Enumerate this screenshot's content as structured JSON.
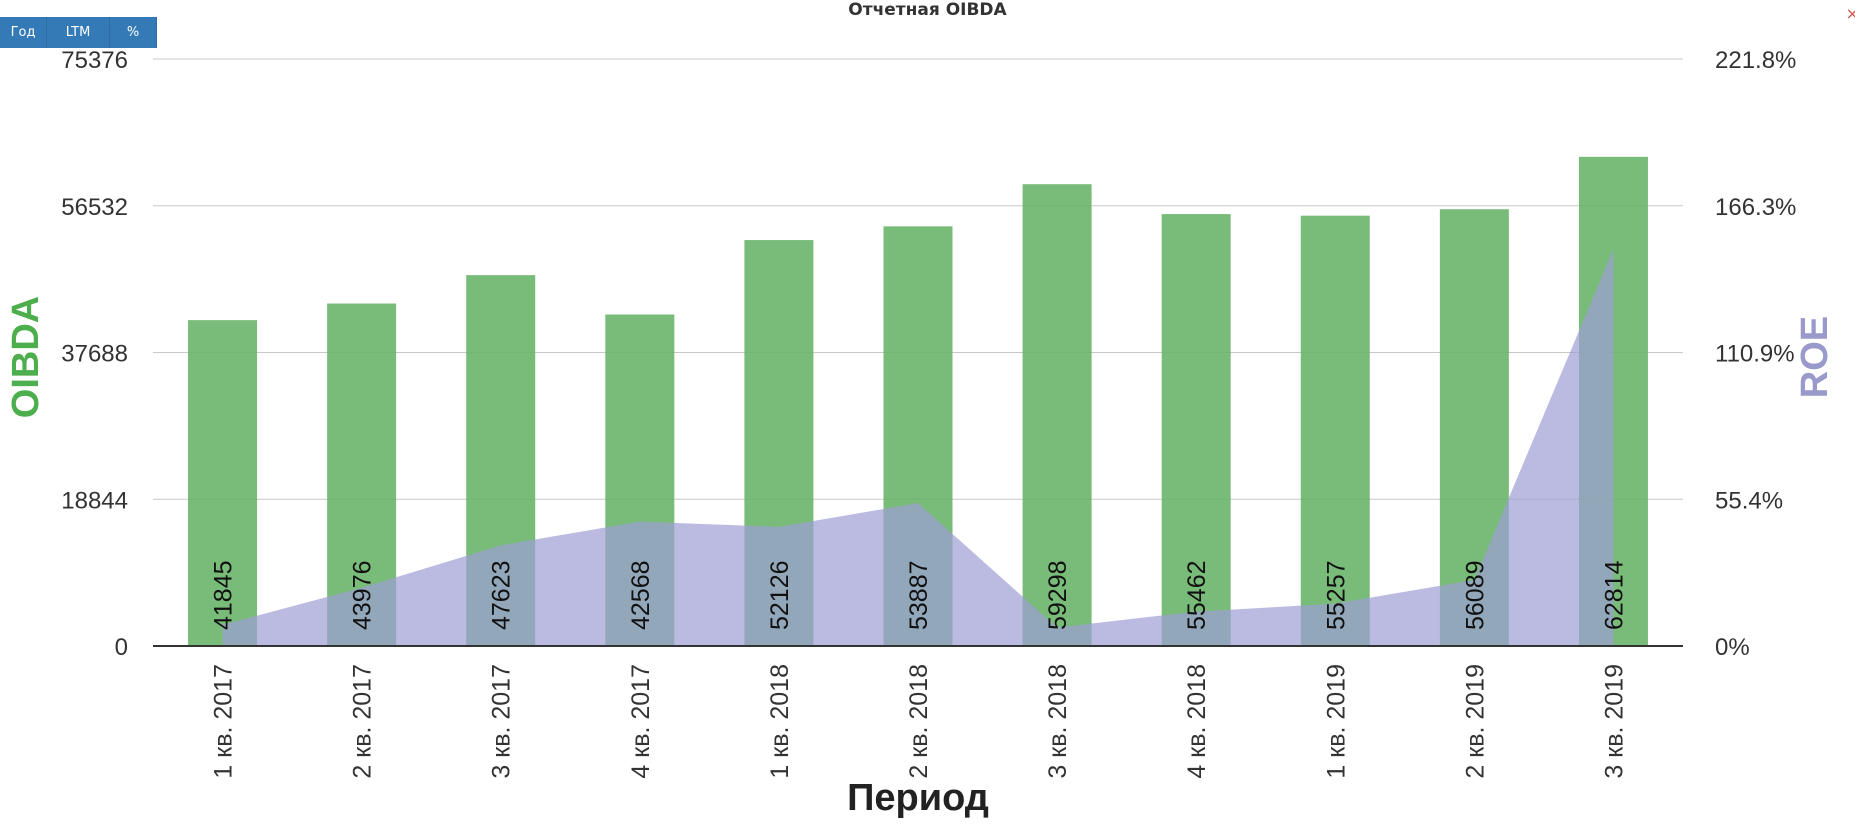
{
  "title": "Отчетная OIBDA",
  "buttons": {
    "year": "Год",
    "ltm": "LTM",
    "percent": "%"
  },
  "close_icon": "close-icon",
  "colors": {
    "bars": "#66b266",
    "area": "#9e9ed6",
    "left_axis_title": "#4cae4c",
    "right_axis_title": "#9999cc",
    "grid": "#c8c8c8"
  },
  "chart_data": {
    "type": "bar",
    "categories": [
      "1 кв. 2017",
      "2 кв. 2017",
      "3 кв. 2017",
      "4 кв. 2017",
      "1 кв. 2018",
      "2 кв. 2018",
      "3 кв. 2018",
      "4 кв. 2018",
      "1 кв. 2019",
      "2 кв. 2019",
      "3 кв. 2019"
    ],
    "series": [
      {
        "name": "OIBDA",
        "type": "bar",
        "axis": "left",
        "values": [
          41845,
          43976,
          47623,
          42568,
          52126,
          53887,
          59298,
          55462,
          55257,
          56089,
          62814
        ]
      },
      {
        "name": "ROE",
        "type": "area",
        "axis": "right",
        "values": [
          8,
          22,
          38,
          47,
          45,
          54,
          7,
          13,
          16,
          25,
          150
        ]
      }
    ],
    "xlabel": "Период",
    "ylabel": "OIBDA",
    "y2label": "ROE",
    "ylim": [
      0,
      75376
    ],
    "y2lim": [
      0,
      221.8
    ],
    "yticks": [
      "0",
      "18844",
      "37688",
      "56532",
      "75376"
    ],
    "y2ticks": [
      "0%",
      "55.4%",
      "110.9%",
      "166.3%",
      "221.8%"
    ],
    "grid": true
  }
}
